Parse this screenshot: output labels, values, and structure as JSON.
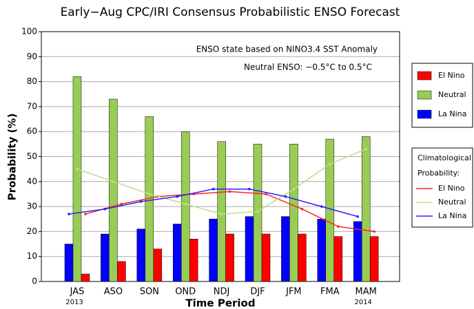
{
  "chart_data": {
    "type": "bar",
    "title": "Early−Aug CPC/IRI Consensus Probabilistic ENSO Forecast",
    "annotations": [
      "ENSO state based on NINO3.4 SST Anomaly",
      "Neutral ENSO: −0.5°C to 0.5°C"
    ],
    "y_label": "Probability (%)",
    "x_label": "Time Period",
    "categories": [
      "JAS",
      "ASO",
      "SON",
      "OND",
      "NDJ",
      "DJF",
      "JFM",
      "FMA",
      "MAM"
    ],
    "category_sublabels": [
      "2013",
      null,
      null,
      null,
      null,
      null,
      null,
      null,
      "2014"
    ],
    "series": [
      {
        "name": "El Nino",
        "color": "#ff0000",
        "values": [
          3,
          8,
          13,
          17,
          19,
          19,
          19,
          18,
          18
        ]
      },
      {
        "name": "Neutral",
        "color": "#99cc55",
        "values": [
          82,
          73,
          66,
          60,
          56,
          55,
          55,
          57,
          58
        ]
      },
      {
        "name": "La Nina",
        "color": "#0000ff",
        "values": [
          15,
          19,
          21,
          23,
          25,
          26,
          26,
          25,
          24
        ]
      }
    ],
    "climatology_title": [
      "Climatological",
      "Probability:"
    ],
    "climatology_series": [
      {
        "name": "El Nino",
        "color": "#ff2222",
        "values": [
          27,
          31,
          34,
          35,
          36,
          35,
          29,
          22,
          20
        ]
      },
      {
        "name": "Neutral",
        "color": "#b8e08a",
        "values": [
          45,
          40,
          35,
          31,
          27,
          28,
          37,
          47,
          53
        ]
      },
      {
        "name": "La Nina",
        "color": "#2222ff",
        "values": [
          27,
          29,
          32,
          34,
          37,
          37,
          34,
          30,
          26
        ]
      }
    ],
    "ylim": [
      0,
      100
    ],
    "yticks": [
      0,
      10,
      20,
      30,
      40,
      50,
      60,
      70,
      80,
      90,
      100
    ],
    "grid": true
  }
}
